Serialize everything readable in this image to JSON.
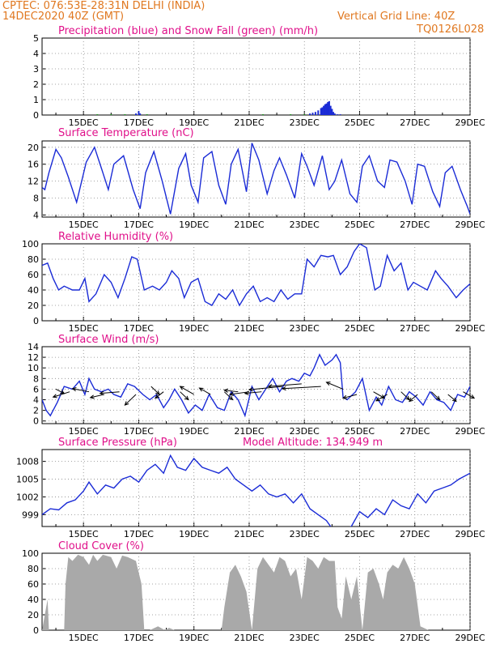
{
  "header": {
    "left_line1": "CPTEC:   076:53E-28:31N   DELHI (INDIA)",
    "left_line2": "14DEC2020 40Z (GMT)",
    "right_line1": "Vertical Grid Line: 40Z",
    "right_line2": "TQ0126L028"
  },
  "colors": {
    "header": "#e07820",
    "title": "#e0108a",
    "line": "#1a2bd6",
    "precip": "#1a2bd6",
    "snow": "#1a9a1a",
    "cloud": "#a9a9a9",
    "grid": "#888888"
  },
  "x_ticks": [
    "15DEC",
    "17DEC",
    "19DEC",
    "21DEC",
    "23DEC",
    "25DEC",
    "27DEC",
    "29DEC"
  ],
  "chart_data": [
    {
      "id": "precip",
      "type": "bar",
      "title": "Precipitation (blue) and Snow Fall (green) (mm/h)",
      "ylim": [
        0,
        5
      ],
      "yticks": [
        "0",
        "1",
        "2",
        "3",
        "4",
        "5"
      ],
      "series": [
        {
          "name": "Precipitation",
          "color": "#1a2bd6",
          "x": [
            16.9,
            17.0,
            17.05,
            23.2,
            23.3,
            23.4,
            23.5,
            23.6,
            23.65,
            23.7,
            23.75,
            23.8,
            23.85,
            23.9,
            23.95,
            24.0,
            24.05,
            24.1,
            24.2,
            24.3
          ],
          "values": [
            0.1,
            0.25,
            0.1,
            0.1,
            0.15,
            0.2,
            0.3,
            0.45,
            0.5,
            0.6,
            0.7,
            0.75,
            0.85,
            0.9,
            0.6,
            0.4,
            0.2,
            0.1,
            0.05,
            0.05
          ]
        },
        {
          "name": "Snow Fall",
          "color": "#1a9a1a",
          "x": [
            15.5,
            16.0,
            16.5,
            17.3,
            21.5,
            22.5,
            23.0
          ],
          "values": [
            0.05,
            0.05,
            0.05,
            0.05,
            0.05,
            0.05,
            0.05
          ]
        }
      ]
    },
    {
      "id": "temp",
      "type": "line",
      "title": "Surface Temperature (nC)",
      "ylim": [
        3.5,
        21.5
      ],
      "yticks": [
        "4",
        "8",
        "12",
        "16",
        "20"
      ],
      "x": [
        13.5,
        13.6,
        13.75,
        14.0,
        14.2,
        14.45,
        14.75,
        15.1,
        15.4,
        15.65,
        15.9,
        16.1,
        16.45,
        16.8,
        17.05,
        17.25,
        17.55,
        17.85,
        18.15,
        18.45,
        18.7,
        18.9,
        19.15,
        19.35,
        19.65,
        19.9,
        20.15,
        20.35,
        20.6,
        20.9,
        21.1,
        21.35,
        21.65,
        21.9,
        22.1,
        22.35,
        22.65,
        22.9,
        23.1,
        23.35,
        23.65,
        23.9,
        24.1,
        24.35,
        24.65,
        24.9,
        25.1,
        25.35,
        25.65,
        25.9,
        26.1,
        26.35,
        26.65,
        26.9,
        27.1,
        27.35,
        27.65,
        27.9,
        28.1,
        28.35,
        28.65,
        28.9,
        29.0
      ],
      "series": [
        {
          "name": "Temperature",
          "color": "#1a2bd6",
          "values": [
            10.5,
            10.0,
            14.0,
            19.5,
            17.5,
            13.0,
            7.0,
            16.5,
            20.0,
            15.0,
            10.0,
            16.0,
            18.0,
            10.0,
            5.5,
            14.0,
            19.0,
            12.0,
            4.2,
            15.0,
            18.5,
            11.0,
            7.0,
            17.5,
            19.0,
            11.0,
            6.5,
            16.0,
            19.5,
            9.5,
            21.0,
            17.0,
            9.0,
            14.5,
            17.5,
            13.5,
            8.0,
            18.5,
            15.5,
            11.0,
            18.0,
            10.0,
            12.0,
            17.0,
            9.0,
            7.0,
            15.5,
            18.0,
            12.0,
            10.5,
            17.0,
            16.5,
            12.0,
            6.5,
            16.0,
            15.5,
            9.5,
            6.0,
            14.0,
            15.5,
            10.0,
            6.0,
            4.2
          ]
        }
      ]
    },
    {
      "id": "rh",
      "type": "line",
      "title": "Relative Humidity (%)",
      "ylim": [
        0,
        100
      ],
      "yticks": [
        "0",
        "20",
        "40",
        "60",
        "80",
        "100"
      ],
      "x": [
        13.5,
        13.7,
        13.9,
        14.1,
        14.3,
        14.6,
        14.85,
        15.05,
        15.2,
        15.45,
        15.75,
        16.0,
        16.25,
        16.5,
        16.75,
        16.95,
        17.2,
        17.5,
        17.75,
        18.0,
        18.2,
        18.45,
        18.65,
        18.9,
        19.15,
        19.4,
        19.65,
        19.9,
        20.15,
        20.4,
        20.65,
        20.9,
        21.15,
        21.4,
        21.65,
        21.9,
        22.15,
        22.4,
        22.65,
        22.9,
        23.1,
        23.35,
        23.6,
        23.85,
        24.05,
        24.3,
        24.55,
        24.8,
        25.0,
        25.25,
        25.55,
        25.75,
        26.0,
        26.25,
        26.5,
        26.75,
        26.95,
        27.2,
        27.45,
        27.75,
        27.95,
        28.2,
        28.5,
        28.75,
        29.0
      ],
      "series": [
        {
          "name": "RH",
          "color": "#1a2bd6",
          "values": [
            72,
            75,
            55,
            40,
            45,
            40,
            40,
            55,
            25,
            35,
            60,
            50,
            30,
            55,
            83,
            80,
            40,
            45,
            40,
            50,
            65,
            55,
            30,
            50,
            55,
            25,
            20,
            35,
            28,
            40,
            20,
            35,
            45,
            25,
            30,
            25,
            40,
            28,
            35,
            35,
            80,
            70,
            85,
            83,
            85,
            60,
            70,
            90,
            100,
            95,
            40,
            45,
            85,
            65,
            75,
            40,
            50,
            45,
            40,
            65,
            55,
            45,
            30,
            40,
            48
          ]
        }
      ]
    },
    {
      "id": "wind",
      "type": "line",
      "title": "Surface Wind (m/s)",
      "ylim": [
        -0.5,
        14
      ],
      "yticks": [
        "0",
        "2",
        "4",
        "6",
        "8",
        "10",
        "12",
        "14"
      ],
      "x": [
        13.5,
        13.65,
        13.8,
        14.05,
        14.3,
        14.6,
        14.85,
        15.05,
        15.2,
        15.4,
        15.65,
        15.9,
        16.1,
        16.35,
        16.6,
        16.85,
        17.15,
        17.4,
        17.65,
        17.9,
        18.1,
        18.3,
        18.55,
        18.8,
        19.05,
        19.3,
        19.55,
        19.85,
        20.1,
        20.35,
        20.6,
        20.85,
        21.1,
        21.35,
        21.6,
        21.85,
        22.1,
        22.35,
        22.55,
        22.8,
        23.0,
        23.2,
        23.35,
        23.55,
        23.75,
        24.0,
        24.15,
        24.3,
        24.4,
        24.55,
        24.85,
        25.1,
        25.35,
        25.6,
        25.8,
        26.05,
        26.3,
        26.55,
        26.8,
        27.05,
        27.3,
        27.55,
        27.8,
        28.05,
        28.3,
        28.55,
        28.8,
        29.0
      ],
      "series": [
        {
          "name": "Wind speed",
          "color": "#1a2bd6",
          "values": [
            4.0,
            2.0,
            1.0,
            3.5,
            6.5,
            6.0,
            7.5,
            5.0,
            8.0,
            6.0,
            5.5,
            6.0,
            5.0,
            4.5,
            7.0,
            6.5,
            5.0,
            4.0,
            5.0,
            2.5,
            4.0,
            6.0,
            4.0,
            1.5,
            3.0,
            2.0,
            5.0,
            2.5,
            2.0,
            5.5,
            4.0,
            1.0,
            6.5,
            4.0,
            6.0,
            8.0,
            5.5,
            7.5,
            8.0,
            7.5,
            9.0,
            8.5,
            10.0,
            12.5,
            10.5,
            11.5,
            12.5,
            11.0,
            4.5,
            4.0,
            5.5,
            8.0,
            2.0,
            4.5,
            3.0,
            6.5,
            4.0,
            3.5,
            5.5,
            4.5,
            3.0,
            5.5,
            4.0,
            3.5,
            2.0,
            5.0,
            4.5,
            6.5
          ]
        }
      ],
      "barbs": [
        {
          "x": 14.0,
          "y": 6.0,
          "dx": 0.3,
          "dy": -0.8
        },
        {
          "x": 14.5,
          "y": 5.5,
          "dx": -0.6,
          "dy": -1.0
        },
        {
          "x": 15.2,
          "y": 5.5,
          "dx": -0.6,
          "dy": 0.6
        },
        {
          "x": 15.75,
          "y": 5.0,
          "dx": -0.5,
          "dy": -0.6
        },
        {
          "x": 16.3,
          "y": 5.5,
          "dx": -0.7,
          "dy": -0.3
        },
        {
          "x": 16.9,
          "y": 5.0,
          "dx": -0.4,
          "dy": -2.0
        },
        {
          "x": 17.45,
          "y": 6.5,
          "dx": 0.3,
          "dy": -1.5
        },
        {
          "x": 17.9,
          "y": 5.5,
          "dx": -0.3,
          "dy": -1.2
        },
        {
          "x": 18.5,
          "y": 5.5,
          "dx": 0.3,
          "dy": -1.5
        },
        {
          "x": 19.0,
          "y": 5.0,
          "dx": -0.5,
          "dy": 1.5
        },
        {
          "x": 19.6,
          "y": 5.0,
          "dx": -0.4,
          "dy": 1.2
        },
        {
          "x": 20.1,
          "y": 5.5,
          "dx": 0.3,
          "dy": -1.5
        },
        {
          "x": 20.6,
          "y": 5.5,
          "dx": -0.5,
          "dy": 0.3
        },
        {
          "x": 21.0,
          "y": 5.5,
          "dx": -0.7,
          "dy": -0.5
        },
        {
          "x": 21.45,
          "y": 5.5,
          "dx": -0.6,
          "dy": -0.3
        },
        {
          "x": 22.2,
          "y": 6.5,
          "dx": -1.2,
          "dy": -0.6
        },
        {
          "x": 22.9,
          "y": 7.0,
          "dx": -1.2,
          "dy": -0.5
        },
        {
          "x": 23.6,
          "y": 6.5,
          "dx": -1.4,
          "dy": -0.4
        },
        {
          "x": 24.4,
          "y": 6.0,
          "dx": -0.6,
          "dy": 1.3
        },
        {
          "x": 24.9,
          "y": 5.0,
          "dx": -0.5,
          "dy": -0.7
        },
        {
          "x": 25.5,
          "y": 5.5,
          "dx": 0.4,
          "dy": -1.2
        },
        {
          "x": 26.0,
          "y": 5.0,
          "dx": -0.4,
          "dy": -1.2
        },
        {
          "x": 26.5,
          "y": 5.5,
          "dx": 0.3,
          "dy": -1.5
        },
        {
          "x": 27.1,
          "y": 5.0,
          "dx": -0.3,
          "dy": -1.3
        },
        {
          "x": 27.6,
          "y": 5.5,
          "dx": 0.3,
          "dy": -1.5
        },
        {
          "x": 28.2,
          "y": 5.0,
          "dx": 0.3,
          "dy": -1.3
        },
        {
          "x": 28.75,
          "y": 5.5,
          "dx": 0.4,
          "dy": -1.2
        }
      ]
    },
    {
      "id": "pres",
      "type": "line",
      "title": "Surface Pressure (hPa)",
      "subtitle": "Model Altitude: 134.949 m",
      "ylim": [
        997.0,
        1010.0
      ],
      "yticks": [
        "999",
        "1002",
        "1005",
        "1008"
      ],
      "x": [
        13.5,
        13.8,
        14.1,
        14.4,
        14.7,
        15.0,
        15.2,
        15.5,
        15.8,
        16.1,
        16.4,
        16.7,
        17.0,
        17.3,
        17.6,
        17.9,
        18.15,
        18.4,
        18.7,
        19.0,
        19.3,
        19.6,
        19.9,
        20.2,
        20.5,
        20.8,
        21.1,
        21.4,
        21.7,
        22.0,
        22.3,
        22.6,
        22.9,
        23.2,
        23.5,
        23.8,
        24.1,
        24.4,
        24.7,
        25.0,
        25.3,
        25.6,
        25.9,
        26.2,
        26.5,
        26.8,
        27.1,
        27.4,
        27.7,
        28.0,
        28.3,
        28.6,
        29.0
      ],
      "series": [
        {
          "name": "Pressure",
          "color": "#1a2bd6",
          "values": [
            999.0,
            1000.0,
            999.8,
            1001.0,
            1001.5,
            1003.0,
            1004.5,
            1002.5,
            1004.0,
            1003.5,
            1005.0,
            1005.5,
            1004.5,
            1006.5,
            1007.5,
            1006.0,
            1009.0,
            1007.0,
            1006.5,
            1008.5,
            1007.0,
            1006.5,
            1006.0,
            1007.0,
            1005.0,
            1004.0,
            1003.0,
            1004.0,
            1002.5,
            1002.0,
            1002.5,
            1001.0,
            1002.5,
            1000.0,
            999.0,
            998.0,
            996.0,
            996.5,
            997.0,
            999.5,
            998.5,
            1000.0,
            999.0,
            1001.5,
            1000.5,
            1000.0,
            1002.5,
            1001.0,
            1003.0,
            1003.5,
            1004.0,
            1005.0,
            1006.0
          ]
        }
      ]
    },
    {
      "id": "cloud",
      "type": "area",
      "title": "Cloud Cover (%)",
      "ylim": [
        0,
        100
      ],
      "yticks": [
        "0",
        "20",
        "40",
        "60",
        "80",
        "100"
      ],
      "x": [
        13.5,
        13.7,
        13.75,
        14.3,
        14.35,
        14.45,
        14.6,
        14.8,
        15.0,
        15.2,
        15.35,
        15.5,
        15.7,
        16.0,
        16.2,
        16.4,
        16.6,
        16.9,
        17.1,
        17.2,
        17.4,
        17.7,
        17.95,
        18.1,
        18.3,
        18.8,
        19.0,
        19.3,
        19.6,
        19.8,
        20.0,
        20.1,
        20.3,
        20.5,
        20.7,
        20.9,
        21.1,
        21.3,
        21.5,
        21.7,
        21.9,
        22.1,
        22.3,
        22.5,
        22.7,
        22.9,
        23.1,
        23.3,
        23.5,
        23.7,
        23.9,
        24.1,
        24.2,
        24.35,
        24.5,
        24.7,
        24.9,
        25.1,
        25.3,
        25.5,
        25.7,
        25.85,
        26.0,
        26.2,
        26.4,
        26.6,
        26.8,
        27.0,
        27.2,
        27.5,
        27.7,
        28.0,
        28.5,
        29.0
      ],
      "series": [
        {
          "name": "Cloud cover",
          "color": "#a9a9a9",
          "values": [
            0,
            40,
            0,
            0,
            60,
            95,
            90,
            98,
            95,
            85,
            98,
            90,
            98,
            95,
            80,
            97,
            95,
            90,
            60,
            0,
            0,
            5,
            0,
            3,
            0,
            0,
            0,
            0,
            0,
            0,
            0,
            30,
            75,
            85,
            70,
            50,
            0,
            80,
            95,
            85,
            75,
            95,
            90,
            70,
            80,
            40,
            95,
            90,
            80,
            95,
            90,
            90,
            30,
            15,
            70,
            40,
            70,
            0,
            75,
            80,
            60,
            40,
            75,
            85,
            80,
            95,
            80,
            60,
            5,
            0,
            0,
            0,
            0,
            0
          ]
        }
      ]
    }
  ]
}
